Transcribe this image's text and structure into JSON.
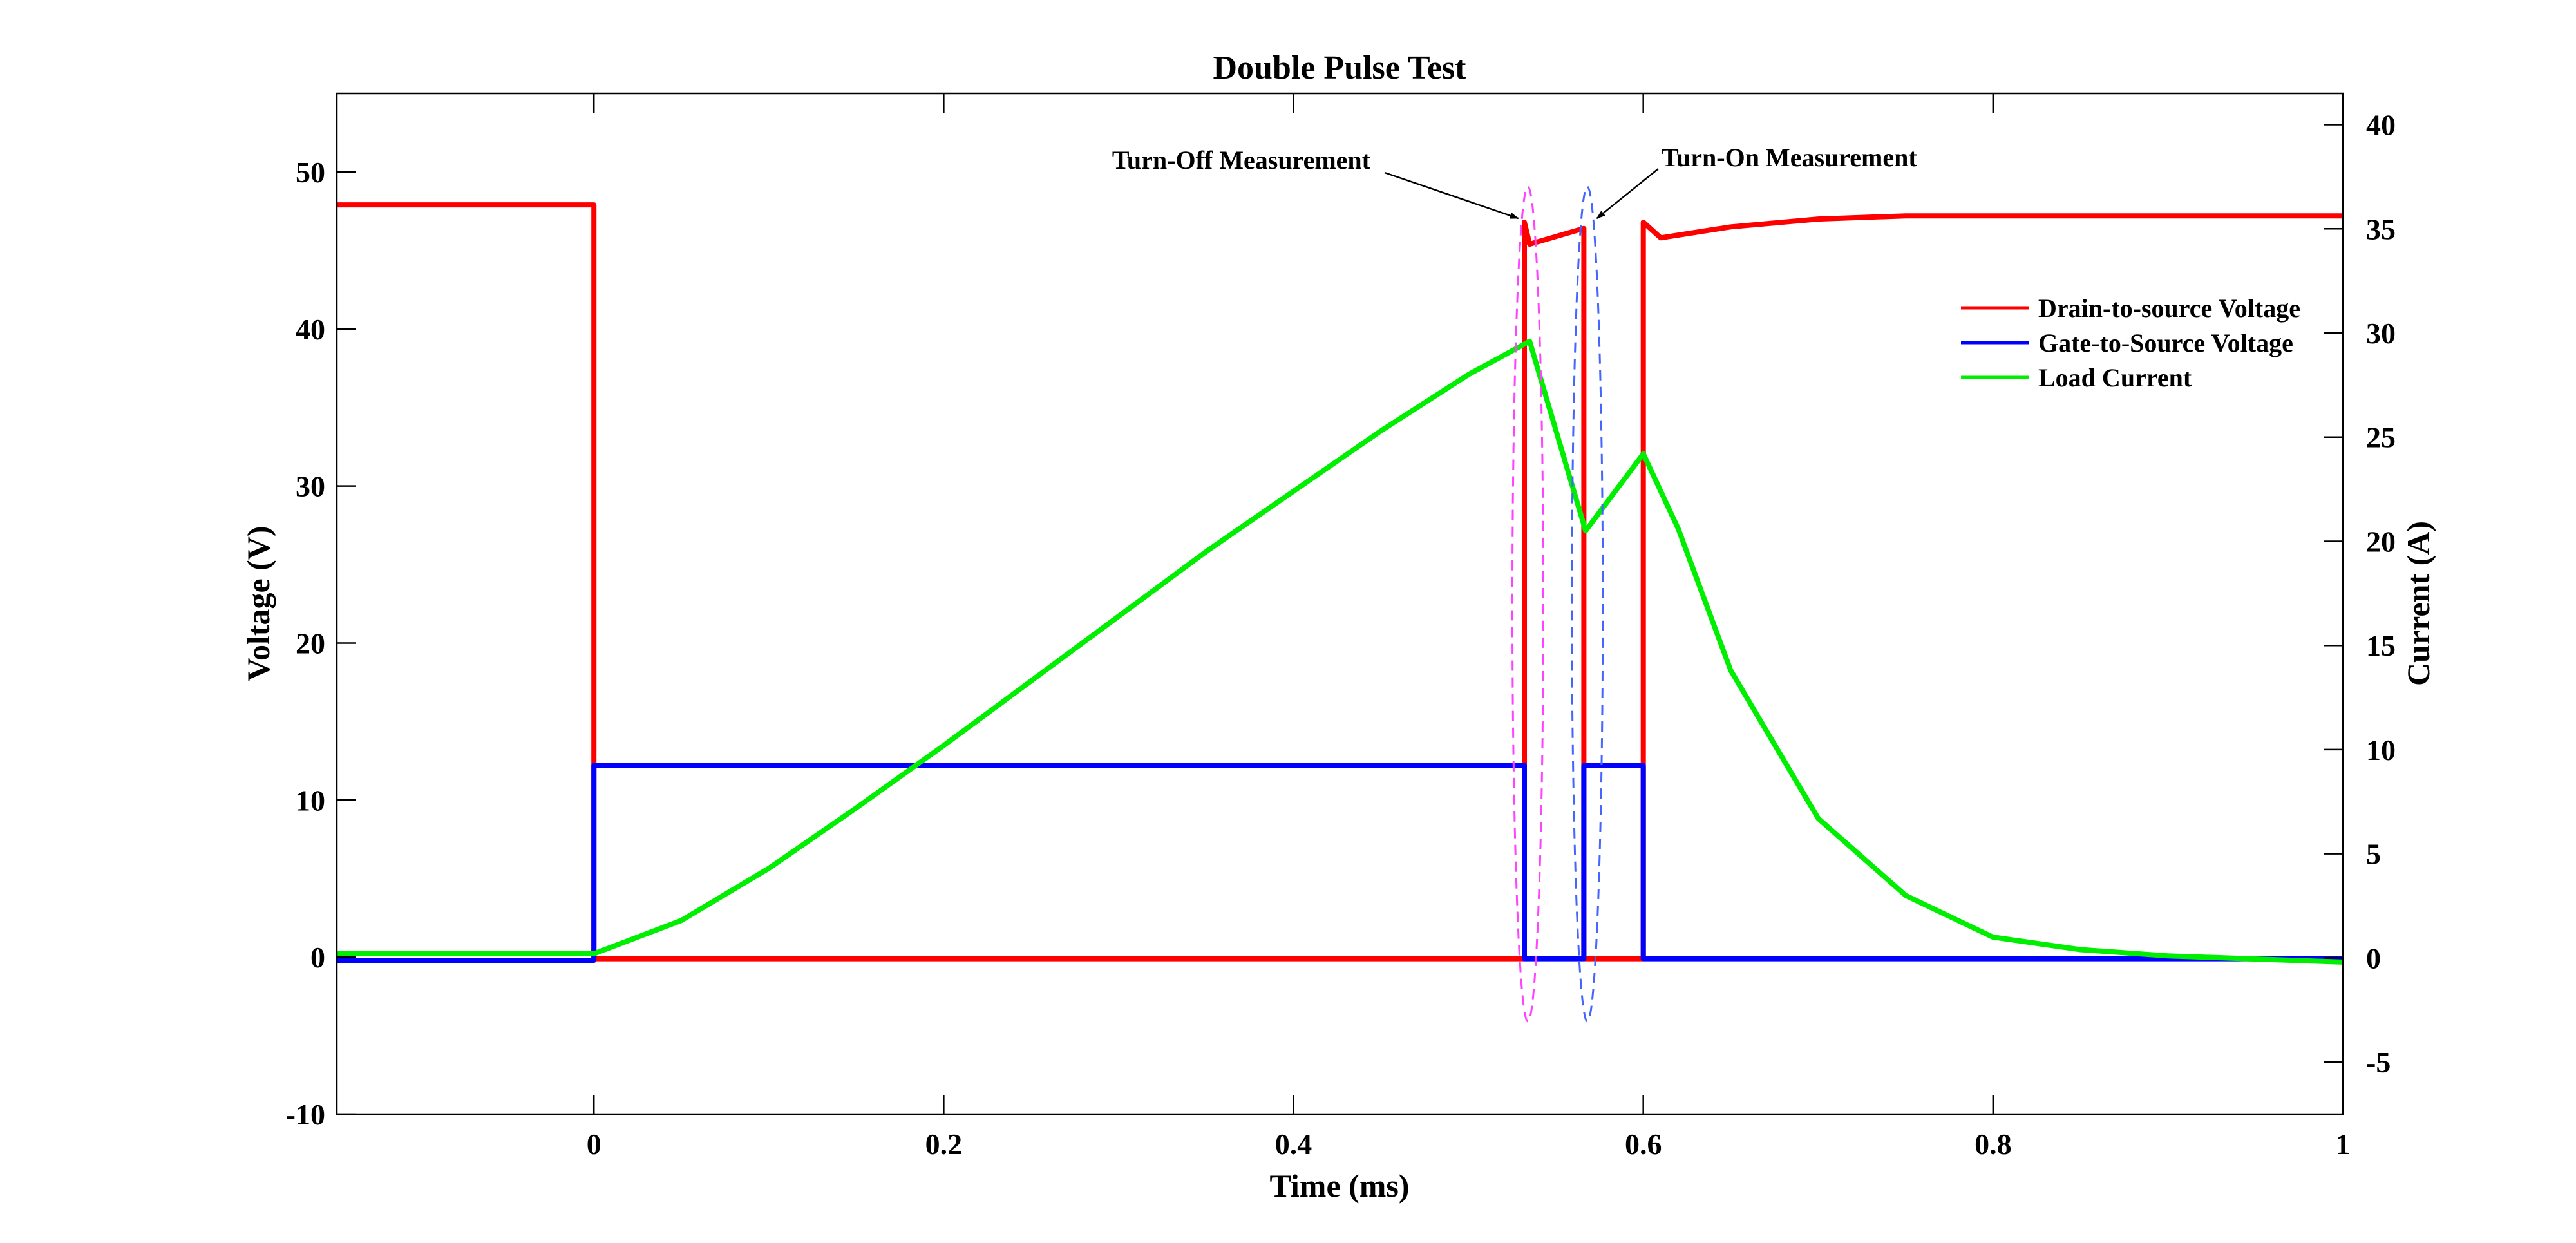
{
  "chart_data": {
    "type": "line",
    "title": "Double Pulse Test",
    "xlabel": "Time (ms)",
    "ylabel_left": "Voltage (V)",
    "ylabel_right": "Current (A)",
    "xlim": [
      -0.147,
      1.0
    ],
    "ylim_left": [
      -10,
      55
    ],
    "ylim_right": [
      -7.5,
      41.5
    ],
    "x_ticks": [
      0,
      0.2,
      0.4,
      0.6,
      0.8,
      1
    ],
    "x_tick_labels": [
      "0",
      "0.2",
      "0.4",
      "0.6",
      "0.8",
      "1"
    ],
    "y_left_ticks": [
      -10,
      0,
      10,
      20,
      30,
      40,
      50
    ],
    "y_left_tick_labels": [
      "-10",
      "0",
      "10",
      "20",
      "30",
      "40",
      "50"
    ],
    "y_right_ticks": [
      -5,
      0,
      5,
      10,
      15,
      20,
      25,
      30,
      35,
      40
    ],
    "y_right_tick_labels": [
      "-5",
      "0",
      "5",
      "10",
      "15",
      "20",
      "25",
      "30",
      "35",
      "40"
    ],
    "grid": false,
    "legend_position": "top-right",
    "series": [
      {
        "name": "Drain-to-source Voltage",
        "axis": "left",
        "color": "#ff0000",
        "x": [
          -0.147,
          0.0,
          0.0,
          0.532,
          0.532,
          0.535,
          0.566,
          0.566,
          0.6,
          0.6,
          0.61,
          0.65,
          0.7,
          0.75,
          0.8,
          0.9,
          1.0
        ],
        "y": [
          47.9,
          47.9,
          -0.1,
          -0.1,
          46.8,
          45.4,
          46.4,
          -0.1,
          -0.1,
          46.8,
          45.8,
          46.5,
          47.0,
          47.2,
          47.2,
          47.2,
          47.2
        ]
      },
      {
        "name": "Gate-to-Source Voltage",
        "axis": "left",
        "color": "#0000ff",
        "x": [
          -0.147,
          0.0,
          0.0,
          0.532,
          0.532,
          0.566,
          0.566,
          0.6,
          0.6,
          1.0
        ],
        "y": [
          -0.2,
          -0.2,
          12.2,
          12.2,
          -0.1,
          -0.1,
          12.2,
          12.2,
          -0.1,
          -0.1
        ]
      },
      {
        "name": "Load Current",
        "axis": "right",
        "color": "#00ee00",
        "x": [
          -0.147,
          0.0,
          0.05,
          0.1,
          0.15,
          0.2,
          0.25,
          0.3,
          0.35,
          0.4,
          0.45,
          0.5,
          0.535,
          0.567,
          0.6,
          0.62,
          0.65,
          0.7,
          0.75,
          0.8,
          0.85,
          0.9,
          1.0
        ],
        "y": [
          0.2,
          0.2,
          1.8,
          4.3,
          7.2,
          10.2,
          13.3,
          16.4,
          19.5,
          22.4,
          25.3,
          28.0,
          29.6,
          20.5,
          24.2,
          20.6,
          13.8,
          6.7,
          3.0,
          1.0,
          0.4,
          0.1,
          -0.2
        ]
      }
    ],
    "annotations": [
      {
        "text": "Turn-Off Measurement",
        "target_x": 0.533,
        "target_y_right": 35.5
      },
      {
        "text": "Turn-On Measurement",
        "target_x": 0.569,
        "target_y_right": 35.5
      }
    ],
    "highlight_ellipses": [
      {
        "label": "turn-off region",
        "center_x": 0.534,
        "color": "#ff44ff"
      },
      {
        "label": "turn-on region",
        "center_x": 0.568,
        "color": "#4466ff"
      }
    ]
  }
}
